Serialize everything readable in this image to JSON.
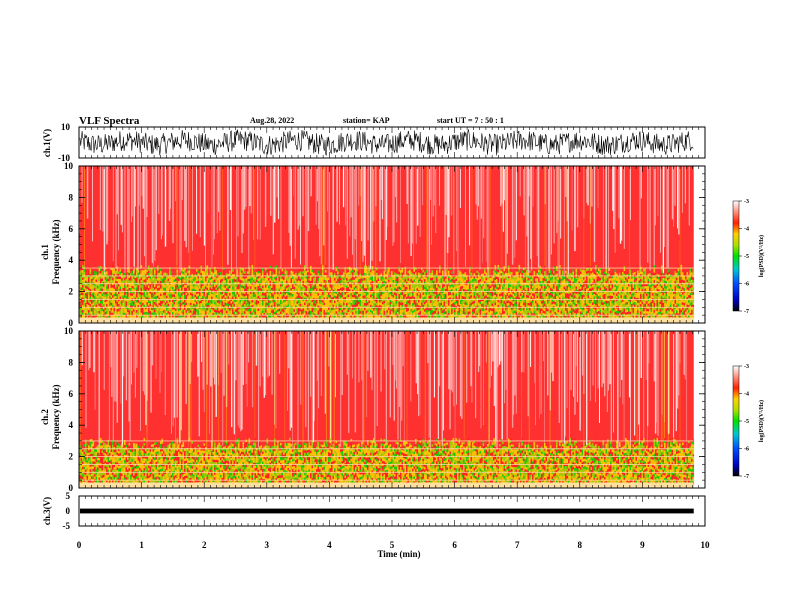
{
  "header": {
    "title": "VLF Spectra",
    "date": "Aug.28, 2022",
    "station": "station= KAP",
    "start": "start  UT =   7 : 50 : 1"
  },
  "chart_data": [
    {
      "type": "line",
      "ylabel": "ch.1(V)",
      "ylim": [
        -10,
        10
      ],
      "yticks": [
        "10",
        "-10"
      ],
      "description_values": "dense noisy waveform spanning roughly -8 to 8 V"
    },
    {
      "type": "heatmap",
      "ylabel": "Frequency  (kHz)",
      "channel_label": "ch.1",
      "ylim": [
        0,
        10
      ],
      "yticks": [
        "0",
        "2",
        "4",
        "6",
        "8",
        "10"
      ],
      "colorbar": {
        "label": "log(PSD)(V²/Hz)",
        "ticks": [
          "-3",
          "-4",
          "-5",
          "-6",
          "-7"
        ],
        "range": [
          -7,
          -3
        ]
      },
      "bands_khz": [
        0.5,
        1.0,
        1.5,
        2.0,
        2.5,
        3.0,
        3.5
      ]
    },
    {
      "type": "heatmap",
      "ylabel": "Frequency  (kHz)",
      "channel_label": "ch.2",
      "ylim": [
        0,
        10
      ],
      "yticks": [
        "0",
        "2",
        "4",
        "6",
        "8",
        "10"
      ],
      "colorbar": {
        "label": "log(PSD)(V²/Hz)",
        "ticks": [
          "-3",
          "-4",
          "-5",
          "-6",
          "-7"
        ],
        "range": [
          -7,
          -3
        ]
      },
      "bands_khz": [
        0.5,
        1.0,
        1.5,
        2.0,
        2.5,
        3.0
      ]
    },
    {
      "type": "line",
      "ylabel": "ch.3(V)",
      "ylim": [
        -5,
        5
      ],
      "yticks": [
        "5",
        "0",
        "-5"
      ],
      "level": 0
    }
  ],
  "xaxis": {
    "label": "Time  (min)",
    "ticks": [
      "0",
      "1",
      "2",
      "3",
      "4",
      "5",
      "6",
      "7",
      "8",
      "9",
      "10"
    ],
    "xlim": [
      0,
      10
    ],
    "data_end": 9.82
  }
}
